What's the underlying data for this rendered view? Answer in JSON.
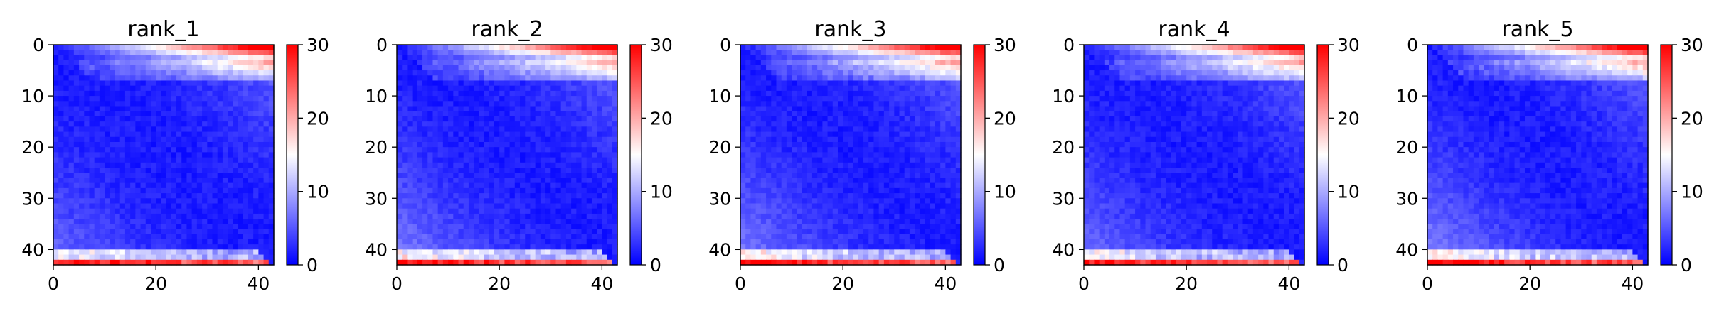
{
  "chart_data": [
    {
      "type": "heatmap",
      "title": "rank_1",
      "size": 43,
      "seed": 11,
      "lowerBoost": 0.0,
      "x_ticks": [
        "0",
        "20",
        "40"
      ],
      "y_ticks": [
        "0",
        "10",
        "20",
        "30",
        "40"
      ],
      "xlim": [
        0,
        43
      ],
      "ylim": [
        43,
        0
      ],
      "colorbar": {
        "ticks": [
          "0",
          "10",
          "20",
          "30"
        ],
        "range": [
          0,
          30
        ],
        "colormap": [
          "#0000ff",
          "#ffffff",
          "#ff0000"
        ]
      }
    },
    {
      "type": "heatmap",
      "title": "rank_2",
      "size": 43,
      "seed": 23,
      "lowerBoost": 0.15,
      "x_ticks": [
        "0",
        "20",
        "40"
      ],
      "y_ticks": [
        "0",
        "10",
        "20",
        "30",
        "40"
      ],
      "xlim": [
        0,
        43
      ],
      "ylim": [
        43,
        0
      ],
      "colorbar": {
        "ticks": [
          "0",
          "10",
          "20",
          "30"
        ],
        "range": [
          0,
          30
        ],
        "colormap": [
          "#0000ff",
          "#ffffff",
          "#ff0000"
        ]
      }
    },
    {
      "type": "heatmap",
      "title": "rank_3",
      "size": 43,
      "seed": 37,
      "lowerBoost": 0.15,
      "x_ticks": [
        "0",
        "20",
        "40"
      ],
      "y_ticks": [
        "0",
        "10",
        "20",
        "30",
        "40"
      ],
      "xlim": [
        0,
        43
      ],
      "ylim": [
        43,
        0
      ],
      "colorbar": {
        "ticks": [
          "0",
          "10",
          "20",
          "30"
        ],
        "range": [
          0,
          30
        ],
        "colormap": [
          "#0000ff",
          "#ffffff",
          "#ff0000"
        ]
      }
    },
    {
      "type": "heatmap",
      "title": "rank_4",
      "size": 43,
      "seed": 41,
      "lowerBoost": 0.05,
      "x_ticks": [
        "0",
        "20",
        "40"
      ],
      "y_ticks": [
        "0",
        "10",
        "20",
        "30",
        "40"
      ],
      "xlim": [
        0,
        43
      ],
      "ylim": [
        43,
        0
      ],
      "colorbar": {
        "ticks": [
          "0",
          "10",
          "20",
          "30"
        ],
        "range": [
          0,
          30
        ],
        "colormap": [
          "#0000ff",
          "#ffffff",
          "#ff0000"
        ]
      }
    },
    {
      "type": "heatmap",
      "title": "rank_5",
      "size": 43,
      "seed": 53,
      "lowerBoost": 0.2,
      "x_ticks": [
        "0",
        "20",
        "40"
      ],
      "y_ticks": [
        "0",
        "10",
        "20",
        "30",
        "40"
      ],
      "xlim": [
        0,
        43
      ],
      "ylim": [
        43,
        0
      ],
      "colorbar": {
        "ticks": [
          "0",
          "10",
          "20",
          "30"
        ],
        "range": [
          0,
          30
        ],
        "colormap": [
          "#0000ff",
          "#ffffff",
          "#ff0000"
        ]
      }
    }
  ]
}
